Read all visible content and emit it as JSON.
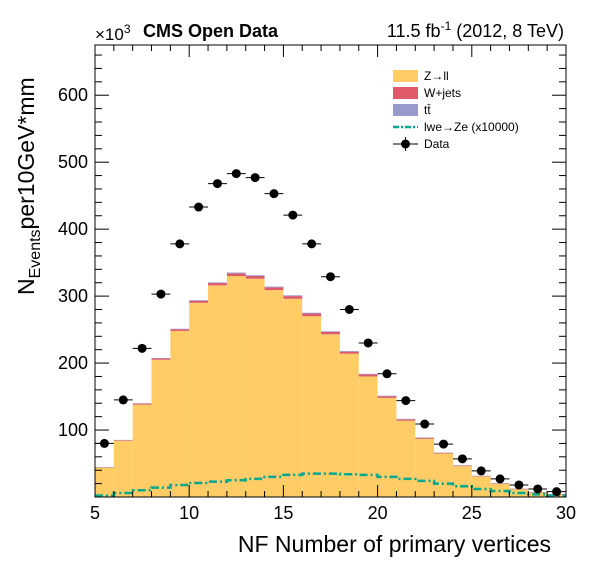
{
  "chart_data": {
    "type": "bar",
    "stacked": true,
    "header_left": "CMS Open Data",
    "header_right": {
      "main": "11.5 fb",
      "sup": "-1",
      "rest": " (2012, 8 TeV)"
    },
    "y_exponent": {
      "prefix": "×10",
      "sup": "3"
    },
    "xlabel": "NF Number of primary vertices",
    "ylabel": {
      "main": "N",
      "sub": "Events",
      "rest": "per10GeV*mm"
    },
    "xlim": [
      5,
      30
    ],
    "ylim": [
      0,
      675
    ],
    "xticks": [
      5,
      10,
      15,
      20,
      25,
      30
    ],
    "xtick_labels": [
      "5",
      "10",
      "15",
      "20",
      "25",
      "30"
    ],
    "yticks": [
      100,
      200,
      300,
      400,
      500,
      600
    ],
    "ytick_labels": [
      "100",
      "200",
      "300",
      "400",
      "500",
      "600"
    ],
    "bin_edges": [
      5,
      6,
      7,
      8,
      9,
      10,
      11,
      12,
      13,
      14,
      15,
      16,
      17,
      18,
      19,
      20,
      21,
      22,
      23,
      24,
      25,
      26,
      27,
      28,
      29,
      30
    ],
    "legend_position": "top-right",
    "grid": false,
    "series": [
      {
        "name": "Z→ll",
        "kind": "hist",
        "color": "#ffcc66",
        "values": [
          44,
          84,
          138,
          205,
          248,
          290,
          316,
          330,
          326,
          309,
          296,
          270,
          243,
          214,
          180,
          148,
          114,
          87,
          65,
          46,
          31,
          20,
          12,
          7,
          4
        ]
      },
      {
        "name": "W+jets",
        "kind": "hist",
        "color": "#de5a6a",
        "values": [
          0.5,
          1,
          1.5,
          2,
          2.5,
          3,
          3.5,
          4,
          4,
          4,
          4,
          4,
          3.5,
          3,
          3,
          2.5,
          2,
          1.5,
          1,
          1,
          0.5,
          0.5,
          0.3,
          0.2,
          0.1
        ]
      },
      {
        "name": "tt̄",
        "kind": "hist",
        "color": "#9999cc",
        "values": [
          0.2,
          0.3,
          0.5,
          0.6,
          0.8,
          1,
          1,
          1.2,
          1.2,
          1.2,
          1.2,
          1.2,
          1,
          1,
          0.9,
          0.8,
          0.7,
          0.5,
          0.4,
          0.3,
          0.2,
          0.2,
          0.1,
          0.1,
          0.1
        ]
      },
      {
        "name": "lwe→Ze (x10000)",
        "kind": "line",
        "color": "#00a88f",
        "values": [
          2,
          6,
          10,
          14,
          18,
          21,
          23,
          25,
          27,
          30,
          33,
          35,
          35,
          34,
          33,
          30,
          27,
          24,
          20,
          16,
          12,
          9,
          6,
          4,
          2
        ]
      },
      {
        "name": "Data",
        "kind": "points",
        "color": "#000000",
        "values": [
          80,
          145,
          222,
          303,
          378,
          433,
          468,
          483,
          477,
          453,
          421,
          378,
          329,
          280,
          230,
          184,
          144,
          109,
          79,
          57,
          39,
          27,
          18,
          12,
          8
        ]
      }
    ]
  }
}
